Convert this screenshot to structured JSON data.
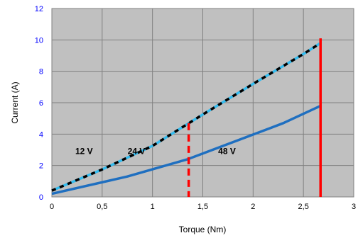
{
  "chart_data": {
    "type": "line",
    "xlabel": "Torque (Nm)",
    "ylabel": "Current (A)",
    "xlim": [
      0,
      3
    ],
    "ylim": [
      0,
      12
    ],
    "x_ticks": [
      0,
      0.5,
      1,
      1.5,
      2,
      2.5,
      3
    ],
    "x_tick_labels": [
      "0",
      "0,5",
      "1",
      "1,5",
      "2",
      "2,5",
      "3"
    ],
    "y_ticks": [
      0,
      2,
      4,
      6,
      8,
      10,
      12
    ],
    "y_tick_labels": [
      "0",
      "2",
      "4",
      "6",
      "8",
      "10",
      "12"
    ],
    "grid": true,
    "plot_background": "#c0c0c0",
    "series": [
      {
        "style": "black dashed over light blue",
        "color": "#000000",
        "dash_color": "#33bbee",
        "x": [
          0,
          0.5,
          1,
          1.5,
          2,
          2.5,
          2.67
        ],
        "y": [
          0.4,
          1.75,
          3.25,
          5.25,
          7.2,
          9.1,
          9.8
        ]
      },
      {
        "style": "solid",
        "color": "#1f6fc0",
        "x": [
          0,
          0.75,
          1.35,
          2.3,
          2.67
        ],
        "y": [
          0.2,
          1.3,
          2.4,
          4.7,
          5.8
        ]
      }
    ],
    "vlines": [
      {
        "x": 1.36,
        "y_top": 4.7,
        "color": "#ff0000",
        "style": "dashed"
      },
      {
        "x": 2.67,
        "y_top": 10.1,
        "color": "#ff0000",
        "style": "solid"
      }
    ],
    "annotations": [
      {
        "text": "12 V",
        "x": 0.32,
        "y": 2.9
      },
      {
        "text": "24 V",
        "x": 0.84,
        "y": 2.9
      },
      {
        "text": "48 V",
        "x": 1.74,
        "y": 2.9
      }
    ]
  }
}
